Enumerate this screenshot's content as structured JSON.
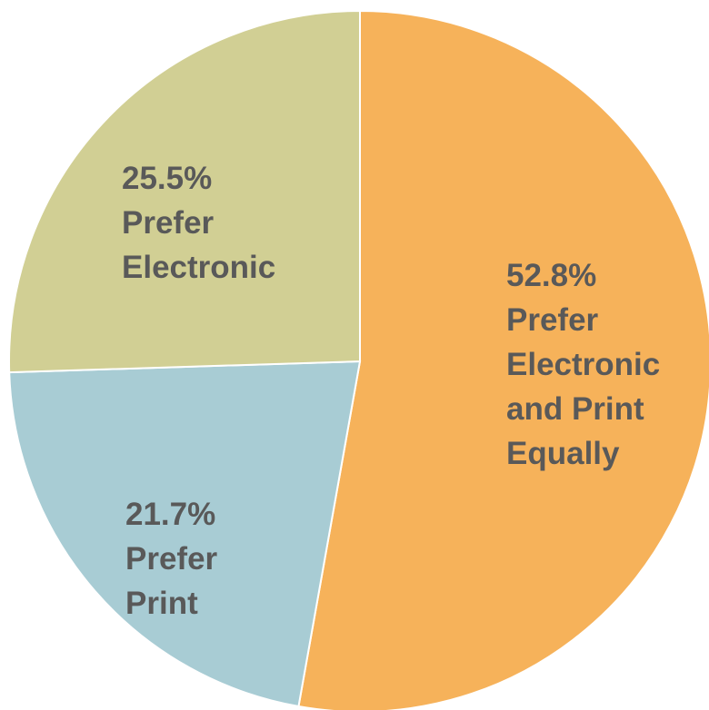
{
  "chart_data": {
    "type": "pie",
    "title": "",
    "slices": [
      {
        "label": "Prefer Electronic and Print Equally",
        "value": 52.8,
        "color": "#F6B25A",
        "label_lines": [
          "52.8%",
          "Prefer",
          "Electronic",
          "and Print",
          "Equally"
        ]
      },
      {
        "label": "Prefer Print",
        "value": 21.7,
        "color": "#A8CCD4",
        "label_lines": [
          "21.7%",
          "Prefer",
          "Print"
        ]
      },
      {
        "label": "Prefer Electronic",
        "value": 25.5,
        "color": "#D1CF94",
        "label_lines": [
          "25.5%",
          "Prefer",
          "Electronic"
        ]
      }
    ],
    "start_angle_deg": 0,
    "direction": "clockwise",
    "label_color": "#595959"
  }
}
